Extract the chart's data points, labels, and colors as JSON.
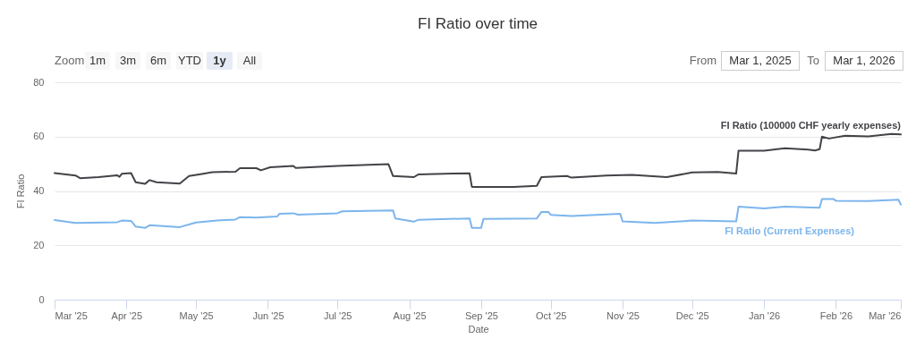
{
  "chart_data": {
    "type": "line",
    "title": "FI Ratio over time",
    "xlabel": "Date",
    "ylabel": "FI Ratio",
    "annotations": [
      "Zoom",
      "1m",
      "3m",
      "6m",
      "YTD",
      "1y",
      "All",
      "From",
      "Mar 1, 2025",
      "To",
      "Mar 1, 2026"
    ],
    "xlim": [
      "2025-03-01",
      "2026-03-01"
    ],
    "xticks": [
      {
        "value": "2025-03-01",
        "label": "Mar '25"
      },
      {
        "value": "2025-04-01",
        "label": "Apr '25"
      },
      {
        "value": "2025-05-01",
        "label": "May '25"
      },
      {
        "value": "2025-06-01",
        "label": "Jun '25"
      },
      {
        "value": "2025-07-01",
        "label": "Jul '25"
      },
      {
        "value": "2025-08-01",
        "label": "Aug '25"
      },
      {
        "value": "2025-09-01",
        "label": "Sep '25"
      },
      {
        "value": "2025-10-01",
        "label": "Oct '25"
      },
      {
        "value": "2025-11-01",
        "label": "Nov '25"
      },
      {
        "value": "2025-12-01",
        "label": "Dec '25"
      },
      {
        "value": "2026-01-01",
        "label": "Jan '26"
      },
      {
        "value": "2026-02-01",
        "label": "Feb '26"
      },
      {
        "value": "2026-03-01",
        "label": "Mar '26"
      }
    ],
    "ylim": [
      0,
      80
    ],
    "yticks": [
      0,
      20,
      40,
      60,
      80
    ],
    "grid": "y",
    "legend": false,
    "series": [
      {
        "name": "FI Ratio (100000 CHF yearly expenses)",
        "color": "#434348",
        "x": [
          "2025-03-01",
          "2025-03-10",
          "2025-03-12",
          "2025-03-20",
          "2025-03-28",
          "2025-03-29",
          "2025-03-30",
          "2025-04-03",
          "2025-04-05",
          "2025-04-09",
          "2025-04-11",
          "2025-04-14",
          "2025-04-24",
          "2025-04-28",
          "2025-05-03",
          "2025-05-08",
          "2025-05-18",
          "2025-05-20",
          "2025-05-27",
          "2025-05-29",
          "2025-06-02",
          "2025-06-12",
          "2025-06-13",
          "2025-07-01",
          "2025-07-23",
          "2025-07-25",
          "2025-08-03",
          "2025-08-05",
          "2025-08-20",
          "2025-08-27",
          "2025-08-28",
          "2025-09-15",
          "2025-09-25",
          "2025-09-27",
          "2025-10-08",
          "2025-10-10",
          "2025-10-25",
          "2025-11-05",
          "2025-11-20",
          "2025-12-01",
          "2025-12-12",
          "2025-12-20",
          "2025-12-21",
          "2026-01-01",
          "2026-01-10",
          "2026-01-20",
          "2026-01-23",
          "2026-01-25",
          "2026-01-26",
          "2026-01-29",
          "2026-02-05",
          "2026-02-15",
          "2026-02-25",
          "2026-03-01"
        ],
        "values": [
          46.6,
          45.7,
          44.7,
          45.1,
          45.8,
          45.2,
          46.3,
          46.6,
          43.2,
          42.6,
          44.0,
          43.2,
          42.7,
          45.5,
          46.2,
          46.9,
          47.1,
          48.4,
          48.4,
          47.6,
          48.7,
          49.2,
          48.5,
          49.2,
          49.9,
          45.5,
          45.1,
          46.1,
          46.4,
          46.5,
          41.5,
          41.5,
          41.9,
          45.1,
          45.5,
          44.9,
          45.7,
          45.9,
          45.1,
          46.8,
          47.0,
          46.4,
          54.8,
          54.8,
          55.7,
          55.2,
          54.9,
          55.4,
          60.0,
          59.3,
          60.3,
          60.1,
          61.0,
          60.8
        ]
      },
      {
        "name": "FI Ratio (Current Expenses)",
        "color": "#7cb5ec",
        "x": [
          "2025-03-01",
          "2025-03-10",
          "2025-03-28",
          "2025-03-30",
          "2025-04-03",
          "2025-04-05",
          "2025-04-09",
          "2025-04-11",
          "2025-04-24",
          "2025-05-01",
          "2025-05-10",
          "2025-05-18",
          "2025-05-20",
          "2025-05-27",
          "2025-06-05",
          "2025-06-06",
          "2025-06-12",
          "2025-06-14",
          "2025-07-01",
          "2025-07-03",
          "2025-07-25",
          "2025-07-26",
          "2025-08-03",
          "2025-08-05",
          "2025-08-27",
          "2025-08-28",
          "2025-09-01",
          "2025-09-02",
          "2025-09-25",
          "2025-09-27",
          "2025-09-30",
          "2025-10-01",
          "2025-10-10",
          "2025-10-31",
          "2025-11-01",
          "2025-11-15",
          "2025-12-01",
          "2025-12-20",
          "2025-12-21",
          "2026-01-01",
          "2026-01-10",
          "2026-01-25",
          "2026-01-26",
          "2026-01-31",
          "2026-02-01",
          "2026-02-15",
          "2026-02-28",
          "2026-03-01"
        ],
        "values": [
          29.3,
          28.2,
          28.5,
          29.1,
          29.0,
          26.9,
          26.4,
          27.4,
          26.7,
          28.4,
          29.1,
          29.5,
          30.4,
          30.2,
          30.6,
          31.6,
          31.8,
          31.3,
          31.8,
          32.5,
          32.8,
          29.9,
          28.7,
          29.4,
          29.9,
          26.4,
          26.4,
          29.7,
          29.9,
          32.3,
          32.3,
          31.2,
          30.8,
          31.6,
          28.8,
          28.2,
          29.1,
          28.8,
          34.2,
          33.6,
          34.2,
          33.8,
          37.0,
          37.0,
          36.4,
          36.3,
          36.8,
          35.0
        ]
      }
    ]
  }
}
